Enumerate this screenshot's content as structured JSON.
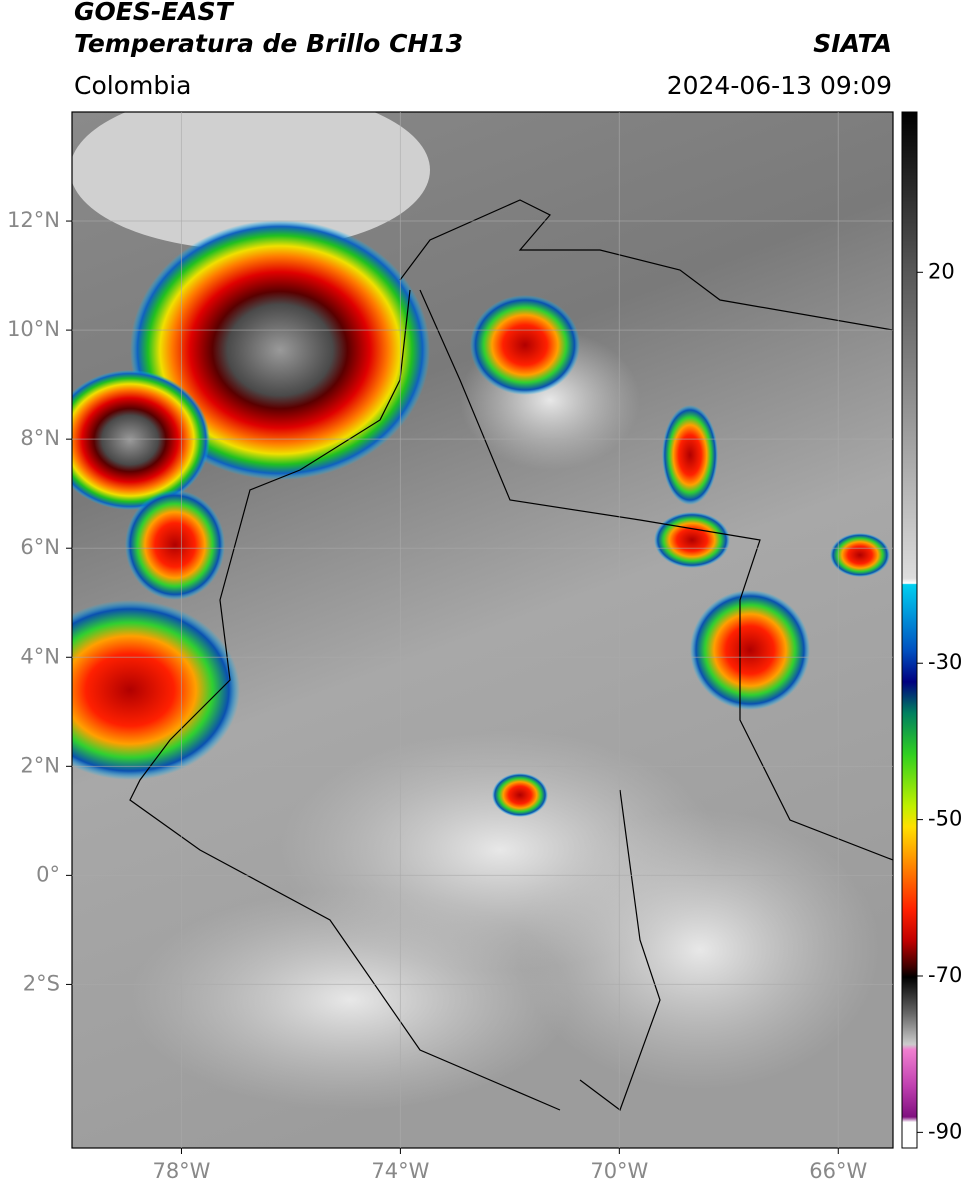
{
  "chart_data": {
    "type": "map",
    "title": "GOES-EAST",
    "subtitle": "Temperatura de Brillo CH13",
    "region": "Colombia",
    "source": "SIATA",
    "timestamp": "2024-06-13 09:09",
    "xlim": [
      -80,
      -65
    ],
    "ylim": [
      -5,
      14
    ],
    "xticks": [
      {
        "value": -78,
        "label": "78°W"
      },
      {
        "value": -74,
        "label": "74°W"
      },
      {
        "value": -70,
        "label": "70°W"
      },
      {
        "value": -66,
        "label": "66°W"
      }
    ],
    "yticks": [
      {
        "value": 12,
        "label": "12°N"
      },
      {
        "value": 10,
        "label": "10°N"
      },
      {
        "value": 8,
        "label": "8°N"
      },
      {
        "value": 6,
        "label": "6°N"
      },
      {
        "value": 4,
        "label": "4°N"
      },
      {
        "value": 2,
        "label": "2°N"
      },
      {
        "value": 0,
        "label": "0°"
      },
      {
        "value": -2,
        "label": "2°S"
      }
    ],
    "grid": true,
    "colorbar": {
      "lim": [
        -92,
        40.5
      ],
      "ticks": [
        20,
        -30,
        -50,
        -70,
        -90
      ]
    }
  }
}
